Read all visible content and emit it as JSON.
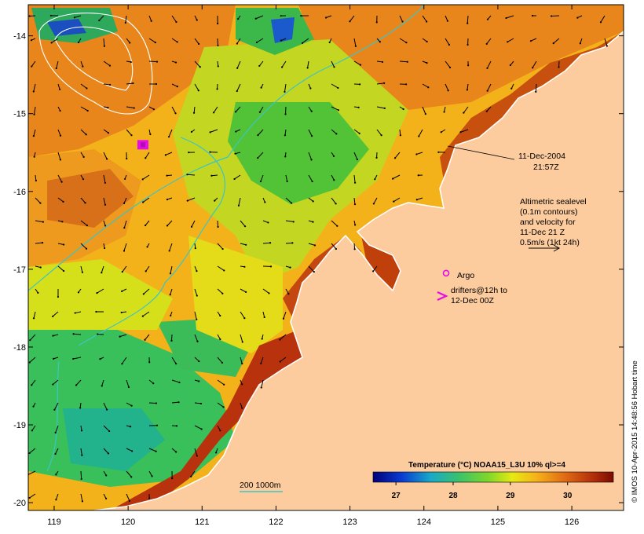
{
  "map": {
    "date": "11-Dec-2004",
    "time": "21:57Z",
    "altimetry_note": [
      "Altimetric sealevel",
      "(0.1m contours)",
      "and velocity for",
      "11-Dec 21 Z",
      "0.5m/s (1kt 24h)"
    ],
    "argo_label": "Argo",
    "drifters_label": [
      "drifters@12h to",
      "12-Dec 00Z"
    ],
    "bathy_label": "200  1000m",
    "credit": "© IMOS 10-Apr-2015 14:48:56 Hobart time",
    "colors": {
      "land": "#fccb9e",
      "argo": "#e60ce6",
      "bathy": "#3ec4c4",
      "coast": "#ffffff"
    },
    "icons": [
      "argo-float-icon",
      "drifter-icon",
      "velocity-arrow-icon"
    ]
  },
  "chart_data": {
    "type": "heatmap",
    "title": "Temperature (°C) NOAA15_L3U 10% ql>=4",
    "x_ticks": [
      "119",
      "120",
      "121",
      "122",
      "123",
      "124",
      "125",
      "126"
    ],
    "y_ticks": [
      "-14",
      "-15",
      "-16",
      "-17",
      "-18",
      "-19",
      "-20"
    ],
    "xlim": [
      118.65,
      126.7
    ],
    "ylim": [
      -20.1,
      -13.6
    ],
    "colorbar": {
      "range": [
        26.6,
        30.8
      ],
      "ticks": [
        "27",
        "28",
        "29",
        "30"
      ],
      "tick_values": [
        27,
        28,
        29,
        30
      ]
    },
    "argo": {
      "lon": 124.3,
      "lat": -17.05
    },
    "drifter": {
      "lon": 120.2,
      "lat": -15.4
    }
  }
}
